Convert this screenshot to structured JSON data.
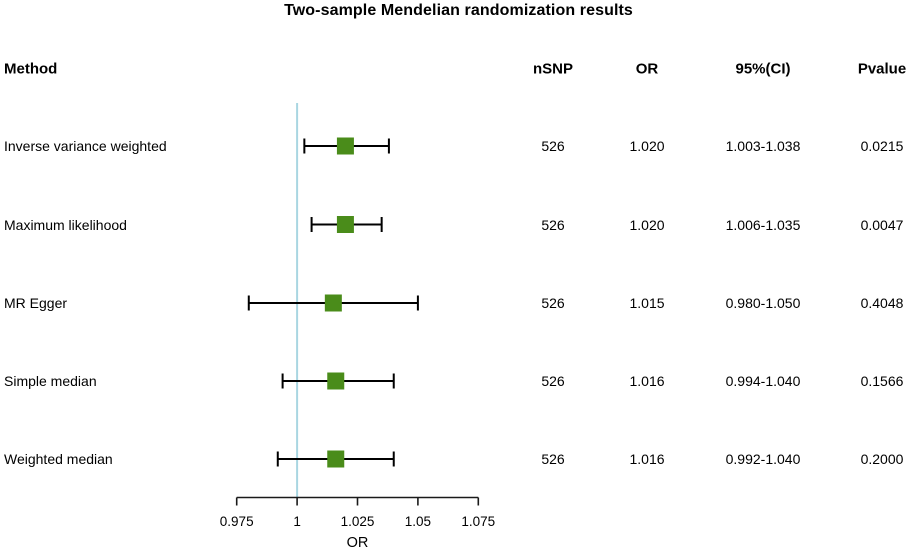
{
  "title": "Two-sample Mendelian randomization results",
  "table": {
    "headers": {
      "method": "Method",
      "nsnp": "nSNP",
      "or": "OR",
      "ci": "95%(CI)",
      "pvalue": "Pvalue"
    }
  },
  "chart_data": {
    "type": "forest",
    "title": "Two-sample Mendelian randomization results",
    "xlabel": "OR",
    "xlim": [
      0.975,
      1.075
    ],
    "x_tick_labels": [
      "0.975",
      "1",
      "1.025",
      "1.05",
      "1.075"
    ],
    "x_tick_values": [
      0.975,
      1,
      1.025,
      1.05,
      1.075
    ],
    "reference_line_x": 1,
    "grid": false,
    "legend": false,
    "rows": [
      {
        "method": "Inverse variance weighted",
        "nsnp": "526",
        "or": "1.020",
        "ci": "1.003-1.038",
        "pvalue": "0.0215",
        "estimate": 1.02,
        "ci_low": 1.003,
        "ci_high": 1.038
      },
      {
        "method": "Maximum likelihood",
        "nsnp": "526",
        "or": "1.020",
        "ci": "1.006-1.035",
        "pvalue": "0.0047",
        "estimate": 1.02,
        "ci_low": 1.006,
        "ci_high": 1.035
      },
      {
        "method": "MR Egger",
        "nsnp": "526",
        "or": "1.015",
        "ci": "0.980-1.050",
        "pvalue": "0.4048",
        "estimate": 1.015,
        "ci_low": 0.98,
        "ci_high": 1.05
      },
      {
        "method": "Simple median",
        "nsnp": "526",
        "or": "1.016",
        "ci": "0.994-1.040",
        "pvalue": "0.1566",
        "estimate": 1.016,
        "ci_low": 0.994,
        "ci_high": 1.04
      },
      {
        "method": "Weighted median",
        "nsnp": "526",
        "or": "1.016",
        "ci": "0.992-1.040",
        "pvalue": "0.2000",
        "estimate": 1.016,
        "ci_low": 0.992,
        "ci_high": 1.04
      }
    ],
    "colors": {
      "marker_green": "#4a8c1a",
      "reference_line_blue": "#a9d6e2",
      "error_bar_black": "#000000",
      "axis_black": "#1a1a1a"
    }
  }
}
